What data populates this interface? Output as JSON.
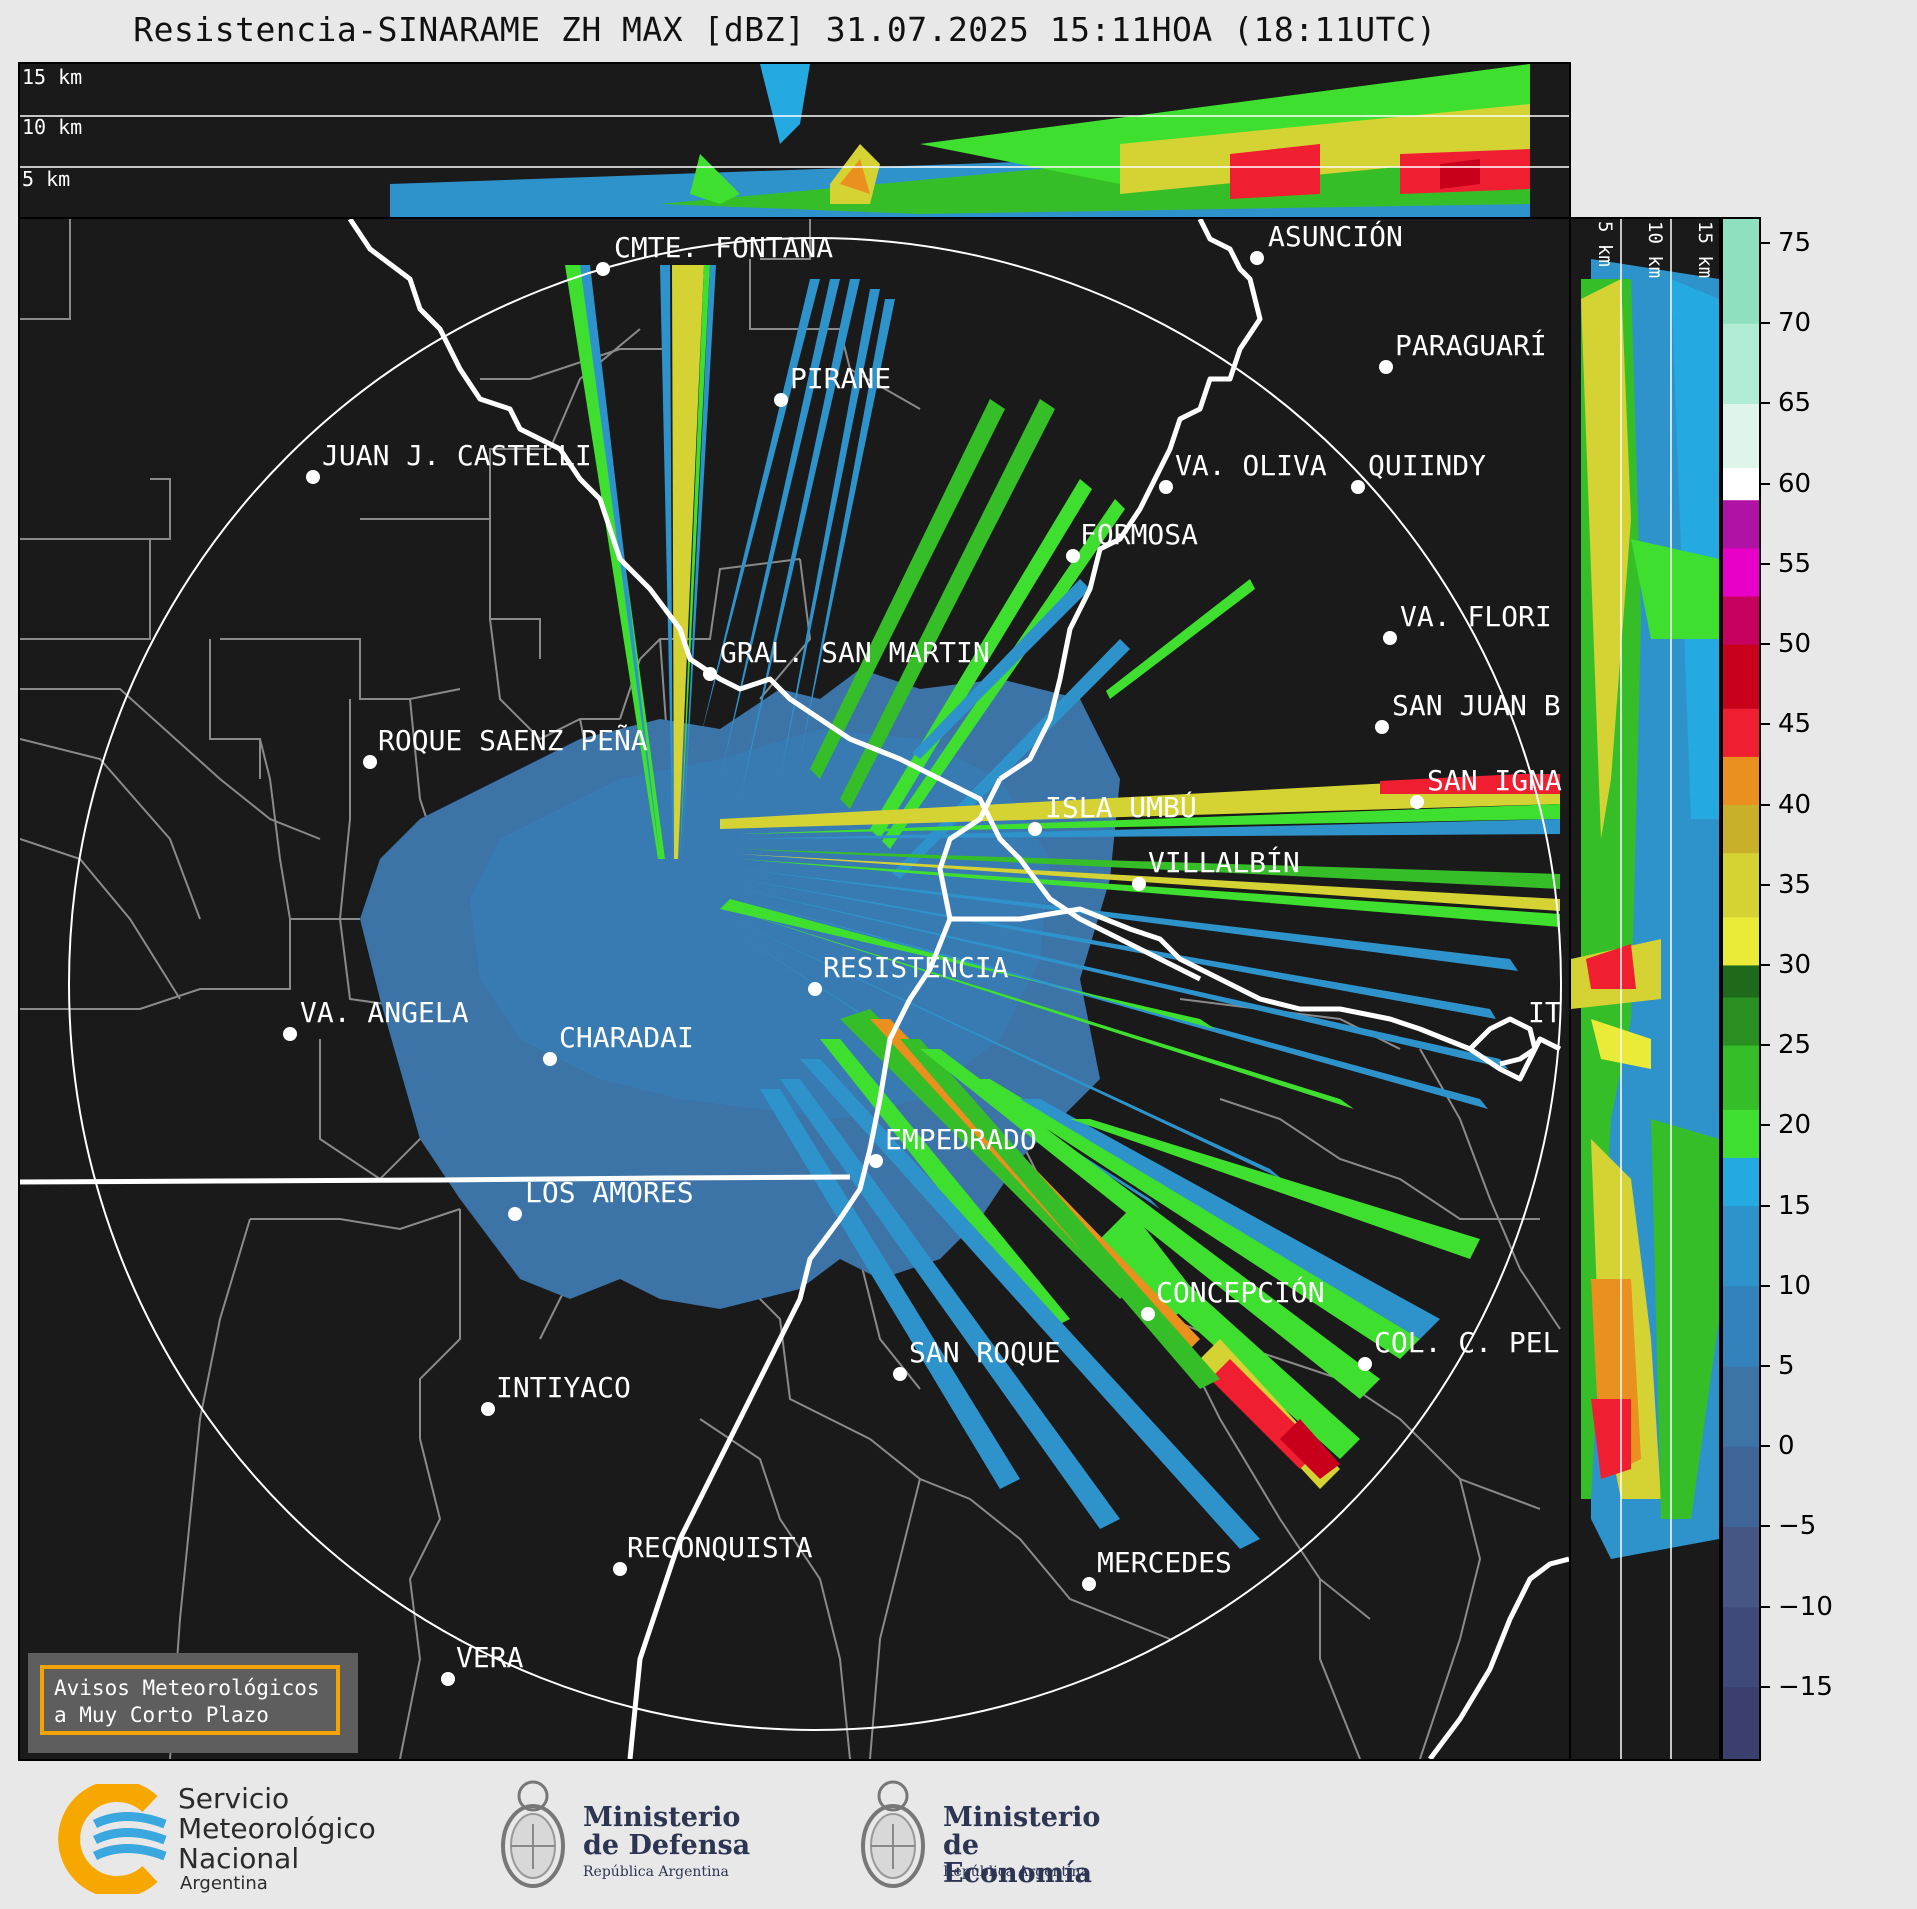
{
  "title": "Resistencia-SINARAME ZH MAX [dBZ] 31.07.2025 15:11HOA (18:11UTC)",
  "top_panel": {
    "height_labels": [
      "15 km",
      "10 km",
      "5 km"
    ]
  },
  "side_panel": {
    "height_labels": [
      "5 km",
      "10 km",
      "15 km"
    ]
  },
  "colorbar": {
    "ticks": [
      "75",
      "70",
      "65",
      "60",
      "55",
      "50",
      "45",
      "40",
      "35",
      "30",
      "25",
      "20",
      "15",
      "10",
      "5",
      "0",
      "−5",
      "−10",
      "−15"
    ],
    "tick_values": [
      75,
      70,
      65,
      60,
      55,
      50,
      45,
      40,
      35,
      30,
      25,
      20,
      15,
      10,
      5,
      0,
      -5,
      -10,
      -15
    ],
    "range": [
      -19.5,
      76.5
    ],
    "bands": [
      {
        "from": -19.5,
        "to": -15,
        "color": "#3a3f6e"
      },
      {
        "from": -15,
        "to": -10,
        "color": "#3f4a7a"
      },
      {
        "from": -10,
        "to": -5,
        "color": "#455685"
      },
      {
        "from": -5,
        "to": 0,
        "color": "#3f6598"
      },
      {
        "from": 0,
        "to": 5,
        "color": "#3c74a8"
      },
      {
        "from": 5,
        "to": 10,
        "color": "#3482bb"
      },
      {
        "from": 10,
        "to": 15,
        "color": "#2f93cb"
      },
      {
        "from": 15,
        "to": 18,
        "color": "#24a9e0"
      },
      {
        "from": 18,
        "to": 21,
        "color": "#3fdf2f"
      },
      {
        "from": 21,
        "to": 25,
        "color": "#36be28"
      },
      {
        "from": 25,
        "to": 28,
        "color": "#2a8f21"
      },
      {
        "from": 28,
        "to": 30,
        "color": "#1f6a1a"
      },
      {
        "from": 30,
        "to": 33,
        "color": "#eaea38"
      },
      {
        "from": 33,
        "to": 37,
        "color": "#d5d234"
      },
      {
        "from": 37,
        "to": 40,
        "color": "#c9b02a"
      },
      {
        "from": 40,
        "to": 43,
        "color": "#e9901f"
      },
      {
        "from": 43,
        "to": 46,
        "color": "#ef1f31"
      },
      {
        "from": 46,
        "to": 50,
        "color": "#c8001c"
      },
      {
        "from": 50,
        "to": 53,
        "color": "#c5005e"
      },
      {
        "from": 53,
        "to": 56,
        "color": "#e800c8"
      },
      {
        "from": 56,
        "to": 59,
        "color": "#b012a6"
      },
      {
        "from": 59,
        "to": 61,
        "color": "#ffffff"
      },
      {
        "from": 61,
        "to": 65,
        "color": "#dff5ea"
      },
      {
        "from": 65,
        "to": 70,
        "color": "#b1ecd4"
      },
      {
        "from": 70,
        "to": 76.5,
        "color": "#8ee0bf"
      }
    ]
  },
  "places": [
    {
      "name": "CMTE. FONTANA"
    },
    {
      "name": "ASUNCIÓN"
    },
    {
      "name": "PIRANE"
    },
    {
      "name": "PARAGUARÍ"
    },
    {
      "name": "JUAN J. CASTELLI"
    },
    {
      "name": "VA. OLIVA"
    },
    {
      "name": "QUIINDY"
    },
    {
      "name": "FORMOSA"
    },
    {
      "name": "VA. FLORI"
    },
    {
      "name": "GRAL. SAN MARTIN"
    },
    {
      "name": "SAN JUAN B"
    },
    {
      "name": "ROQUE SAENZ PEÑA"
    },
    {
      "name": "SAN IGNA"
    },
    {
      "name": "ISLA UMBÚ"
    },
    {
      "name": "VILLALBÍN"
    },
    {
      "name": "RESISTENCIA"
    },
    {
      "name": "VA. ANGELA"
    },
    {
      "name": "CHARADAI"
    },
    {
      "name": "IT"
    },
    {
      "name": "EMPEDRADO"
    },
    {
      "name": "LOS AMORES"
    },
    {
      "name": "CONCEPCIÓN"
    },
    {
      "name": "COL. C. PEL"
    },
    {
      "name": "SAN ROQUE"
    },
    {
      "name": "INTIYACO"
    },
    {
      "name": "RECONQUISTA"
    },
    {
      "name": "MERCEDES"
    },
    {
      "name": "VERA"
    }
  ],
  "warning": {
    "line1": "Avisos Meteorológicos",
    "line2": "a Muy Corto Plazo"
  },
  "footer": {
    "smn": {
      "line1": "Servicio",
      "line2": "Meteorológico",
      "line3": "Nacional",
      "line4": "Argentina"
    },
    "defensa": {
      "line1": "Ministerio",
      "line2": "de Defensa",
      "sub": "República Argentina"
    },
    "economia": {
      "line1": "Ministerio",
      "line2": "de Economía",
      "sub": "República Argentina"
    },
    "colors": {
      "smn_orange": "#f7a800",
      "smn_blue": "#3aa7df",
      "ministry_navy": "#2c3552"
    }
  }
}
